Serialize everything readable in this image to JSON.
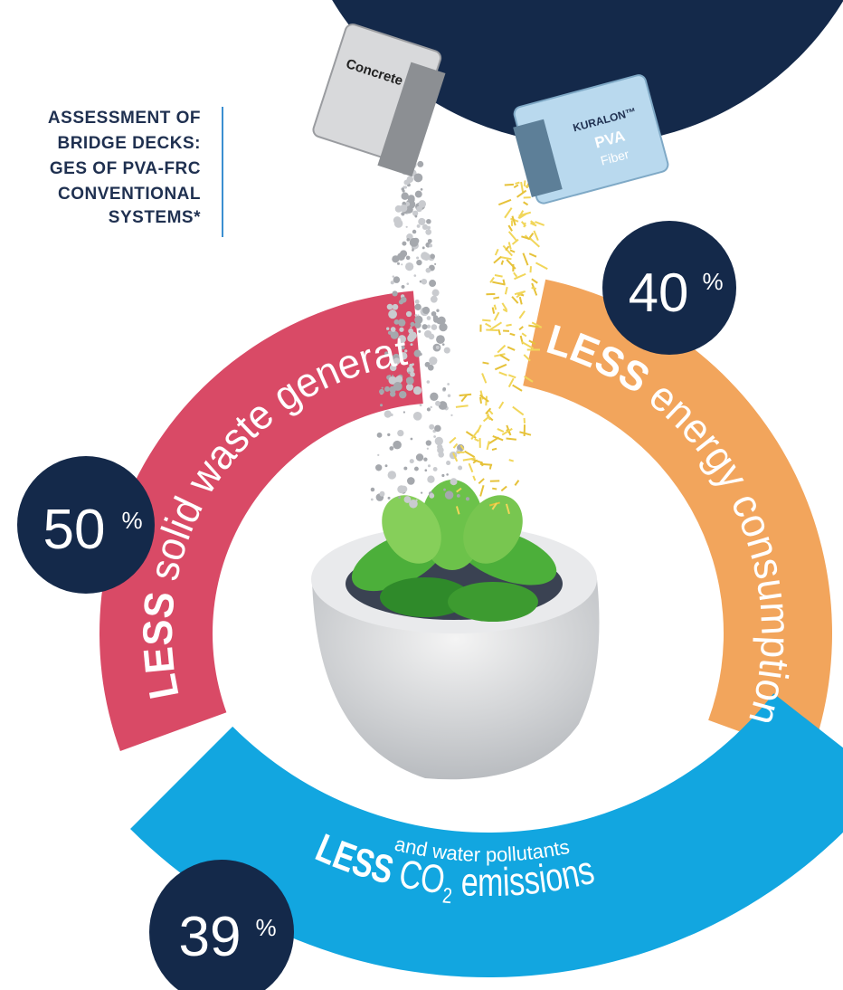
{
  "title_lines": [
    "ASSESSMENT OF",
    "BRIDGE DECKS:",
    "GES OF PVA-FRC",
    "CONVENTIONAL",
    "SYSTEMS*"
  ],
  "bags": {
    "concrete": "Concrete",
    "brand": "KURALON™",
    "material": "PVA",
    "kind": "Fiber"
  },
  "segments": [
    {
      "percent": "50",
      "unit": "%",
      "prefix": "LESS",
      "text": "solid waste generation"
    },
    {
      "percent": "40",
      "unit": "%",
      "prefix": "LESS",
      "text": "energy consumption"
    },
    {
      "percent": "39",
      "unit": "%",
      "prefix": "LESS",
      "text": "CO",
      "subscript": "2",
      "text_after": "emissions",
      "subtext": "and water pollutants"
    }
  ]
}
